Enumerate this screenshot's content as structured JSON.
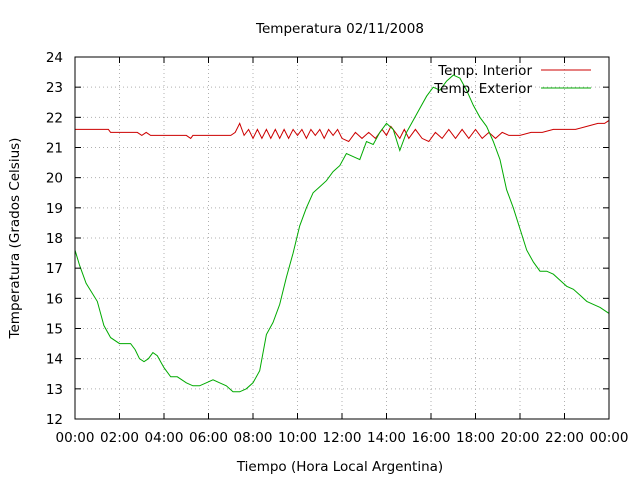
{
  "chart_data": {
    "type": "line",
    "title": "Temperatura 02/11/2008",
    "xlabel": "Tiempo (Hora Local Argentina)",
    "ylabel": "Temperatura (Grados Celsius)",
    "x_unit": "hours",
    "xlim": [
      0,
      24
    ],
    "ylim": [
      12,
      24
    ],
    "x_ticks": [
      0,
      2,
      4,
      6,
      8,
      10,
      12,
      14,
      16,
      18,
      20,
      22,
      24
    ],
    "x_tick_labels": [
      "00:00",
      "02:00",
      "04:00",
      "06:00",
      "08:00",
      "10:00",
      "12:00",
      "14:00",
      "16:00",
      "18:00",
      "20:00",
      "22:00",
      "00:00"
    ],
    "y_ticks": [
      12,
      13,
      14,
      15,
      16,
      17,
      18,
      19,
      20,
      21,
      22,
      23,
      24
    ],
    "grid": true,
    "legend_position": "top-right",
    "series": [
      {
        "name": "Temp. Interior",
        "color": "#cc0000",
        "x": [
          0,
          0.5,
          1,
          1.5,
          1.6,
          2,
          2.5,
          2.8,
          3.0,
          3.2,
          3.4,
          3.6,
          4,
          5,
          5.2,
          5.3,
          5.5,
          6,
          6.5,
          7,
          7.2,
          7.4,
          7.6,
          7.8,
          8.0,
          8.2,
          8.4,
          8.6,
          8.8,
          9.0,
          9.2,
          9.4,
          9.6,
          9.8,
          10.0,
          10.2,
          10.4,
          10.6,
          10.8,
          11.0,
          11.2,
          11.4,
          11.6,
          11.8,
          12.0,
          12.3,
          12.6,
          12.9,
          13.2,
          13.5,
          13.8,
          14.0,
          14.2,
          14.4,
          14.6,
          14.8,
          15.0,
          15.3,
          15.6,
          15.9,
          16.2,
          16.5,
          16.8,
          17.1,
          17.4,
          17.7,
          18.0,
          18.3,
          18.6,
          18.9,
          19.2,
          19.5,
          20,
          20.5,
          21,
          21.5,
          22,
          22.5,
          23,
          23.5,
          23.8,
          24
        ],
        "values": [
          21.6,
          21.6,
          21.6,
          21.6,
          21.5,
          21.5,
          21.5,
          21.5,
          21.4,
          21.5,
          21.4,
          21.4,
          21.4,
          21.4,
          21.3,
          21.4,
          21.4,
          21.4,
          21.4,
          21.4,
          21.5,
          21.8,
          21.4,
          21.6,
          21.3,
          21.6,
          21.3,
          21.6,
          21.3,
          21.6,
          21.3,
          21.6,
          21.3,
          21.6,
          21.4,
          21.6,
          21.3,
          21.6,
          21.4,
          21.6,
          21.3,
          21.6,
          21.4,
          21.6,
          21.3,
          21.2,
          21.5,
          21.3,
          21.5,
          21.3,
          21.6,
          21.4,
          21.7,
          21.5,
          21.3,
          21.6,
          21.3,
          21.6,
          21.3,
          21.2,
          21.5,
          21.3,
          21.6,
          21.3,
          21.6,
          21.3,
          21.6,
          21.3,
          21.5,
          21.3,
          21.5,
          21.4,
          21.4,
          21.5,
          21.5,
          21.6,
          21.6,
          21.6,
          21.7,
          21.8,
          21.8,
          21.9
        ]
      },
      {
        "name": "Temp. Exterior",
        "color": "#00aa00",
        "x": [
          0,
          0.2,
          0.5,
          1.0,
          1.3,
          1.6,
          2.0,
          2.5,
          2.7,
          2.9,
          3.1,
          3.3,
          3.5,
          3.7,
          4.0,
          4.3,
          4.6,
          5.0,
          5.3,
          5.6,
          5.9,
          6.2,
          6.5,
          6.8,
          7.1,
          7.4,
          7.7,
          8.0,
          8.3,
          8.6,
          8.9,
          9.2,
          9.5,
          9.8,
          10.1,
          10.4,
          10.7,
          11.0,
          11.3,
          11.6,
          11.9,
          12.2,
          12.5,
          12.8,
          13.1,
          13.4,
          13.7,
          14.0,
          14.3,
          14.6,
          14.9,
          15.2,
          15.5,
          15.8,
          16.1,
          16.4,
          16.7,
          17.0,
          17.3,
          17.6,
          17.9,
          18.2,
          18.5,
          18.8,
          19.1,
          19.4,
          19.7,
          20.0,
          20.3,
          20.6,
          20.9,
          21.2,
          21.5,
          21.8,
          22.1,
          22.4,
          22.7,
          23.0,
          23.3,
          23.6,
          24.0
        ],
        "values": [
          17.6,
          17.1,
          16.5,
          15.9,
          15.1,
          14.7,
          14.5,
          14.5,
          14.3,
          14.0,
          13.9,
          14.0,
          14.2,
          14.1,
          13.7,
          13.4,
          13.4,
          13.2,
          13.1,
          13.1,
          13.2,
          13.3,
          13.2,
          13.1,
          12.9,
          12.9,
          13.0,
          13.2,
          13.6,
          14.8,
          15.2,
          15.8,
          16.7,
          17.5,
          18.4,
          19.0,
          19.5,
          19.7,
          19.9,
          20.2,
          20.4,
          20.8,
          20.7,
          20.6,
          21.2,
          21.1,
          21.5,
          21.8,
          21.6,
          20.9,
          21.5,
          21.9,
          22.3,
          22.7,
          23.0,
          22.9,
          23.2,
          23.4,
          23.3,
          22.9,
          22.4,
          22.0,
          21.7,
          21.2,
          20.6,
          19.6,
          19.0,
          18.3,
          17.6,
          17.2,
          16.9,
          16.9,
          16.8,
          16.6,
          16.4,
          16.3,
          16.1,
          15.9,
          15.8,
          15.7,
          15.5
        ]
      }
    ]
  }
}
